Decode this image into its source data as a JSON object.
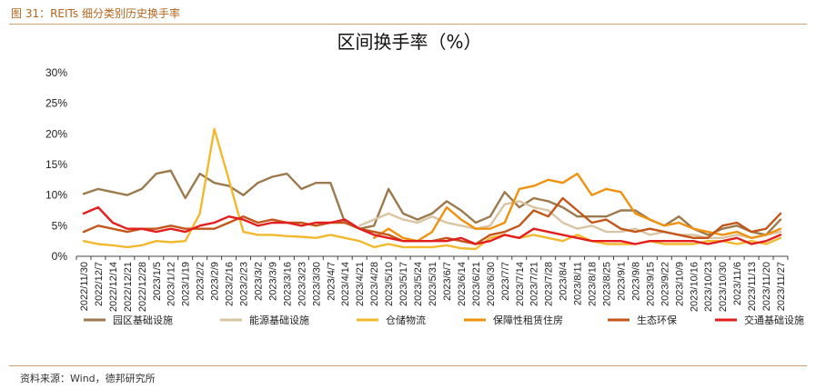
{
  "caption": "图 31：REITs 细分类别历史换手率",
  "source": "资料来源：Wind，德邦研究所",
  "chart_data": {
    "type": "line",
    "title": "区间换手率（%）",
    "yticks": [
      "0%",
      "5%",
      "10%",
      "15%",
      "20%",
      "25%",
      "30%"
    ],
    "ylim": [
      0,
      30
    ],
    "grid": false,
    "legend_position": "bottom",
    "x": [
      "2022/11/30",
      "2022/12/7",
      "2022/12/14",
      "2022/12/21",
      "2022/12/28",
      "2023/1/5",
      "2023/1/12",
      "2023/1/19",
      "2023/2/2",
      "2023/2/9",
      "2023/2/16",
      "2023/2/23",
      "2023/3/2",
      "2023/3/9",
      "2023/3/16",
      "2023/3/23",
      "2023/3/30",
      "2023/4/7",
      "2023/4/14",
      "2023/4/21",
      "2023/4/28",
      "2023/5/10",
      "2023/5/17",
      "2023/5/24",
      "2023/5/31",
      "2023/6/7",
      "2023/6/14",
      "2023/6/21",
      "2023/6/30",
      "2023/7/7",
      "2023/7/14",
      "2023/7/21",
      "2023/7/28",
      "2023/8/4",
      "2023/8/11",
      "2023/8/18",
      "2023/8/25",
      "2023/9/1",
      "2023/9/8",
      "2023/9/15",
      "2023/9/22",
      "2023/10/9",
      "2023/10/16",
      "2023/10/23",
      "2023/10/30",
      "2023/11/6",
      "2023/11/13",
      "2023/11/20",
      "2023/11/27"
    ],
    "series": [
      {
        "name": "园区基础设施",
        "color": "#9c7a4d",
        "values": [
          10.2,
          11.0,
          10.5,
          10.0,
          11.0,
          13.5,
          14.0,
          9.5,
          13.5,
          12.0,
          11.5,
          10.0,
          12.0,
          13.0,
          13.5,
          11.0,
          12.0,
          12.0,
          5.5,
          4.5,
          5.0,
          11.0,
          7.0,
          6.0,
          7.0,
          9.0,
          7.5,
          5.5,
          6.5,
          10.5,
          8.0,
          9.5,
          9.0,
          8.0,
          6.5,
          6.5,
          6.5,
          7.5,
          7.5,
          6.0,
          5.0,
          6.5,
          4.5,
          3.5,
          4.5,
          5.0,
          4.0,
          3.5,
          6.0
        ]
      },
      {
        "name": "能源基础设施",
        "color": "#d9c4a3",
        "values": [
          null,
          null,
          null,
          null,
          null,
          null,
          null,
          null,
          null,
          null,
          null,
          null,
          null,
          null,
          null,
          null,
          null,
          null,
          null,
          5.0,
          6.0,
          7.0,
          6.0,
          5.5,
          6.5,
          5.5,
          5.0,
          4.5,
          5.0,
          8.5,
          9.0,
          8.0,
          7.5,
          5.5,
          4.5,
          5.0,
          4.0,
          4.0,
          4.5,
          3.5,
          4.0,
          3.5,
          3.5,
          3.0,
          3.0,
          3.5,
          3.0,
          3.5,
          4.0
        ]
      },
      {
        "name": "仓储物流",
        "color": "#f2b92e",
        "values": [
          2.5,
          2.0,
          1.8,
          1.5,
          1.8,
          2.5,
          2.3,
          2.5,
          7.0,
          20.8,
          12.5,
          4.0,
          3.5,
          3.5,
          3.3,
          3.2,
          3.0,
          3.5,
          3.0,
          2.5,
          1.5,
          2.0,
          1.5,
          1.5,
          1.5,
          1.8,
          1.3,
          1.2,
          3.0,
          3.5,
          3.0,
          3.5,
          3.0,
          2.5,
          3.5,
          2.5,
          2.0,
          2.0,
          2.0,
          2.5,
          2.0,
          2.0,
          2.0,
          2.5,
          2.5,
          2.0,
          2.5,
          2.0,
          3.0
        ]
      },
      {
        "name": "保障性租赁住房",
        "color": "#f0920f",
        "values": [
          null,
          null,
          null,
          null,
          null,
          null,
          null,
          null,
          null,
          null,
          null,
          null,
          null,
          null,
          null,
          null,
          null,
          null,
          null,
          null,
          3.0,
          4.5,
          3.0,
          2.5,
          4.0,
          8.0,
          6.0,
          4.5,
          4.5,
          5.5,
          11.0,
          11.5,
          12.5,
          12.0,
          13.5,
          10.0,
          11.0,
          10.5,
          7.0,
          6.0,
          5.0,
          5.5,
          4.5,
          4.0,
          3.5,
          4.0,
          3.0,
          3.5,
          4.5
        ]
      },
      {
        "name": "生态环保",
        "color": "#c4561a",
        "values": [
          4.0,
          5.0,
          4.5,
          4.0,
          4.5,
          4.5,
          5.0,
          4.5,
          4.5,
          4.5,
          5.5,
          6.5,
          5.5,
          6.0,
          5.5,
          5.5,
          5.0,
          5.5,
          5.5,
          4.5,
          4.0,
          3.5,
          2.5,
          2.5,
          2.5,
          3.0,
          2.5,
          2.0,
          3.5,
          4.0,
          5.0,
          7.5,
          6.5,
          9.5,
          7.5,
          5.5,
          6.0,
          4.5,
          4.0,
          4.5,
          4.0,
          3.5,
          3.0,
          3.0,
          5.0,
          5.5,
          4.0,
          4.5,
          7.0
        ]
      },
      {
        "name": "交通基础设施",
        "color": "#e31e1e",
        "values": [
          7.0,
          8.0,
          5.5,
          4.5,
          4.5,
          4.0,
          4.5,
          4.0,
          5.0,
          5.5,
          6.5,
          6.0,
          5.0,
          5.5,
          5.5,
          5.0,
          5.5,
          5.5,
          6.0,
          4.5,
          3.5,
          3.0,
          2.5,
          2.5,
          2.5,
          2.5,
          3.0,
          2.0,
          2.5,
          3.5,
          3.0,
          4.5,
          4.0,
          3.5,
          3.0,
          2.5,
          2.5,
          2.5,
          2.0,
          2.5,
          2.5,
          2.5,
          2.5,
          2.0,
          2.5,
          3.0,
          2.0,
          2.5,
          3.5
        ]
      }
    ]
  }
}
